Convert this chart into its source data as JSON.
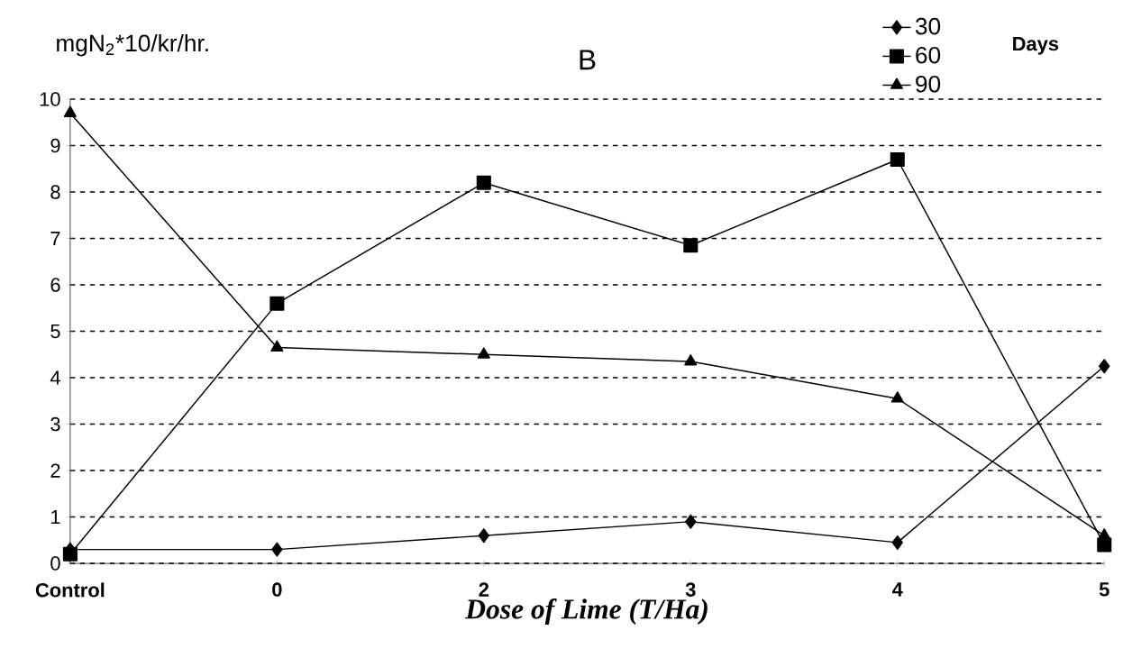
{
  "chart_data": {
    "type": "line",
    "title": "B",
    "xlabel": "Dose of Lime (T/Ha)",
    "ylabel": "mgN$_{2}$*10/kr/hr.",
    "legend_title": "Days",
    "categories": [
      "Control",
      "0",
      "2",
      "3",
      "4",
      "5"
    ],
    "series": [
      {
        "name": "30",
        "color": "#000000",
        "marker": "diamond",
        "values": [
          0.3,
          0.3,
          0.6,
          0.9,
          0.45,
          4.25
        ]
      },
      {
        "name": "60",
        "color": "#000000",
        "marker": "square",
        "values": [
          0.2,
          5.6,
          8.2,
          6.85,
          8.7,
          0.4
        ]
      },
      {
        "name": "90",
        "color": "#000000",
        "marker": "triangle",
        "values": [
          9.7,
          4.65,
          4.5,
          4.35,
          3.55,
          0.6
        ]
      }
    ],
    "ylim": [
      0,
      10
    ],
    "yticks": [
      0,
      1,
      2,
      3,
      4,
      5,
      6,
      7,
      8,
      9,
      10
    ],
    "grid": "y",
    "legend": "top right",
    "line_style": "solid"
  }
}
